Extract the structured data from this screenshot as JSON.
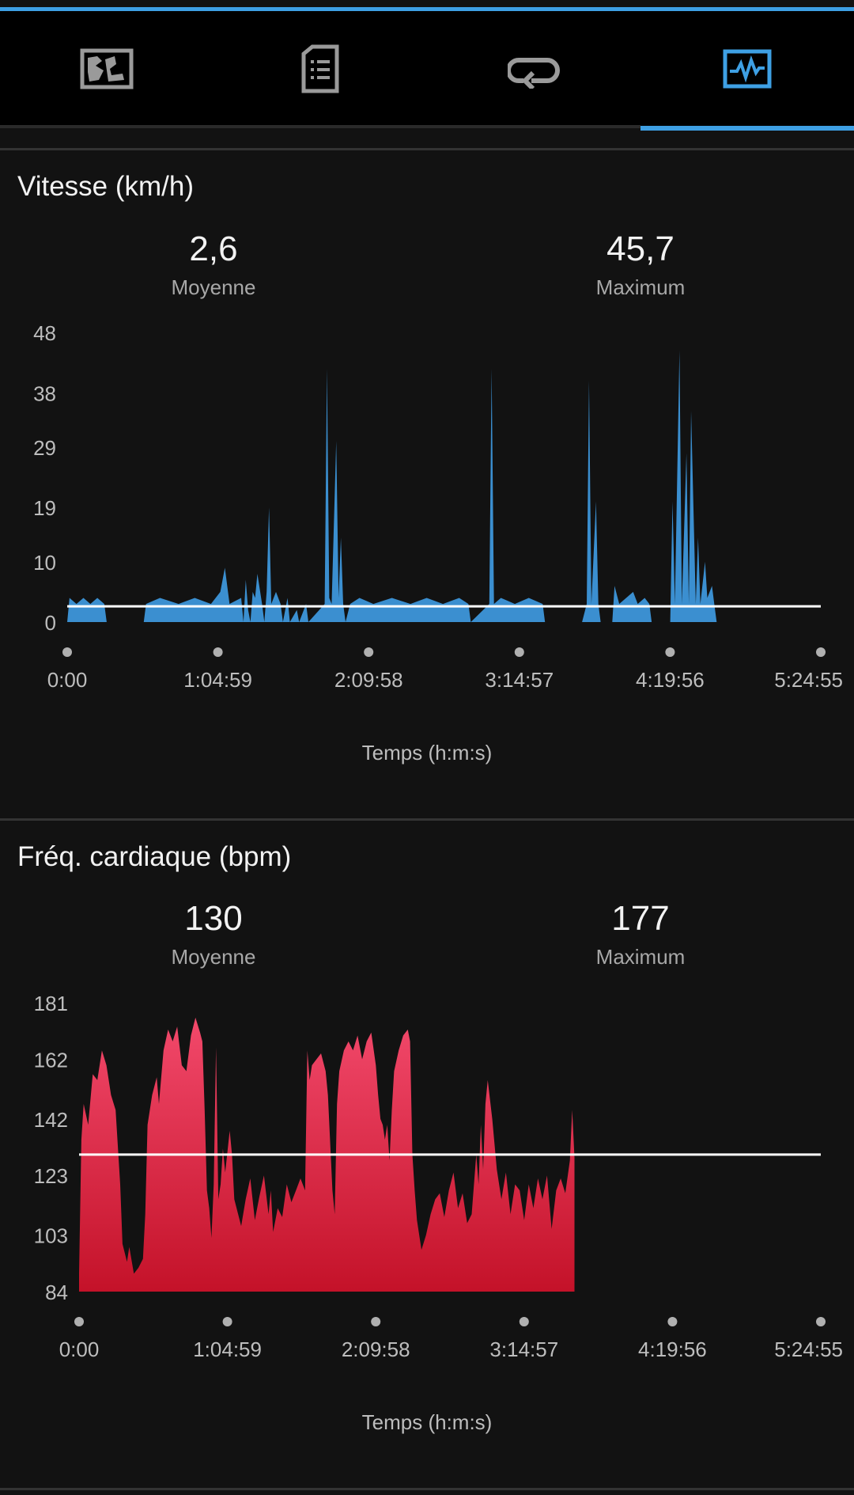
{
  "tabs": [
    {
      "name": "tab-map",
      "icon": "map-icon",
      "selected": false
    },
    {
      "name": "tab-details",
      "icon": "document-list-icon",
      "selected": false
    },
    {
      "name": "tab-laps",
      "icon": "laps-loop-icon",
      "selected": false
    },
    {
      "name": "tab-charts",
      "icon": "activity-chart-icon",
      "selected": true
    }
  ],
  "colors": {
    "accent": "#3ea0e4",
    "speed_fill": "#3b8fd0",
    "hr_top": "#f2496b",
    "hr_bottom": "#c41229",
    "avg_line": "#ffffff"
  },
  "speed": {
    "title": "Vitesse (km/h)",
    "avg_value": "2,6",
    "avg_label": "Moyenne",
    "max_value": "45,7",
    "max_label": "Maximum",
    "x_title": "Temps (h:m:s)"
  },
  "hr": {
    "title": "Fréq. cardiaque (bpm)",
    "avg_value": "130",
    "avg_label": "Moyenne",
    "max_value": "177",
    "max_label": "Maximum",
    "x_title": "Temps (h:m:s)"
  },
  "chart_data": [
    {
      "type": "area",
      "title": "Vitesse (km/h)",
      "xlabel": "Temps (h:m:s)",
      "ylabel": "",
      "y_ticks": [
        "0",
        "10",
        "19",
        "29",
        "38",
        "48"
      ],
      "x_ticks": [
        "0:00",
        "1:04:59",
        "2:09:58",
        "3:14:57",
        "4:19:56",
        "5:24:55"
      ],
      "xlim_seconds": [
        0,
        19495
      ],
      "ylim": [
        0,
        48
      ],
      "average_line": 2.6,
      "series": [
        {
          "points_minutes_value": [
            [
              0,
              0
            ],
            [
              1,
              4
            ],
            [
              4,
              3
            ],
            [
              7,
              4
            ],
            [
              10,
              3
            ],
            [
              13,
              4
            ],
            [
              16,
              3
            ],
            [
              17,
              0
            ],
            [
              33,
              0
            ],
            [
              34,
              3
            ],
            [
              40,
              4
            ],
            [
              48,
              3
            ],
            [
              55,
              4
            ],
            [
              62,
              3
            ],
            [
              66,
              5
            ],
            [
              68,
              9
            ],
            [
              70,
              3
            ],
            [
              75,
              4
            ],
            [
              76,
              0
            ],
            [
              77,
              7
            ],
            [
              78,
              2
            ],
            [
              79,
              0
            ],
            [
              80,
              5
            ],
            [
              81,
              4
            ],
            [
              82,
              8
            ],
            [
              84,
              3
            ],
            [
              85,
              0
            ],
            [
              86,
              5
            ],
            [
              87,
              19
            ],
            [
              88,
              3
            ],
            [
              90,
              5
            ],
            [
              92,
              3
            ],
            [
              93,
              0
            ],
            [
              95,
              4
            ],
            [
              96,
              0
            ],
            [
              99,
              2
            ],
            [
              100,
              0
            ],
            [
              103,
              3
            ],
            [
              104,
              0
            ],
            [
              111,
              3
            ],
            [
              112,
              42
            ],
            [
              113,
              4
            ],
            [
              114,
              3
            ],
            [
              116,
              30
            ],
            [
              117,
              4
            ],
            [
              118,
              14
            ],
            [
              119,
              3
            ],
            [
              120,
              0
            ],
            [
              122,
              3
            ],
            [
              126,
              4
            ],
            [
              132,
              3
            ],
            [
              140,
              4
            ],
            [
              148,
              3
            ],
            [
              155,
              4
            ],
            [
              162,
              3
            ],
            [
              169,
              4
            ],
            [
              173,
              3
            ],
            [
              174,
              0
            ],
            [
              182,
              3
            ],
            [
              183,
              42
            ],
            [
              184,
              3
            ],
            [
              187,
              4
            ],
            [
              193,
              3
            ],
            [
              199,
              4
            ],
            [
              205,
              3
            ],
            [
              206,
              0
            ],
            [
              222,
              0
            ],
            [
              224,
              3
            ],
            [
              225,
              40
            ],
            [
              226,
              3
            ],
            [
              228,
              20
            ],
            [
              229,
              3
            ],
            [
              230,
              0
            ],
            [
              235,
              0
            ],
            [
              236,
              6
            ],
            [
              238,
              3
            ],
            [
              241,
              4
            ],
            [
              244,
              5
            ],
            [
              246,
              3
            ],
            [
              249,
              4
            ],
            [
              251,
              3
            ],
            [
              252,
              0
            ],
            [
              260,
              0
            ],
            [
              261,
              20
            ],
            [
              262,
              3
            ],
            [
              264,
              45
            ],
            [
              265,
              3
            ],
            [
              267,
              28
            ],
            [
              268,
              3
            ],
            [
              269,
              35
            ],
            [
              271,
              3
            ],
            [
              272,
              14
            ],
            [
              273,
              3
            ],
            [
              275,
              10
            ],
            [
              276,
              4
            ],
            [
              278,
              6
            ],
            [
              279,
              3
            ],
            [
              280,
              0
            ]
          ]
        }
      ]
    },
    {
      "type": "area",
      "title": "Fréq. cardiaque (bpm)",
      "xlabel": "Temps (h:m:s)",
      "ylabel": "",
      "y_ticks": [
        "84",
        "103",
        "123",
        "142",
        "162",
        "181"
      ],
      "x_ticks": [
        "0:00",
        "1:04:59",
        "2:09:58",
        "3:14:57",
        "4:19:56",
        "5:24:55"
      ],
      "xlim_seconds": [
        0,
        19495
      ],
      "ylim": [
        84,
        181
      ],
      "average_line": 130,
      "series": [
        {
          "points_minutes_value": [
            [
              0,
              90
            ],
            [
              1,
              135
            ],
            [
              2,
              147
            ],
            [
              4,
              140
            ],
            [
              6,
              157
            ],
            [
              8,
              155
            ],
            [
              10,
              165
            ],
            [
              12,
              160
            ],
            [
              14,
              150
            ],
            [
              16,
              145
            ],
            [
              18,
              120
            ],
            [
              19,
              100
            ],
            [
              21,
              94
            ],
            [
              22,
              99
            ],
            [
              24,
              90
            ],
            [
              26,
              92
            ],
            [
              28,
              95
            ],
            [
              29,
              110
            ],
            [
              30,
              140
            ],
            [
              32,
              150
            ],
            [
              34,
              156
            ],
            [
              35,
              147
            ],
            [
              37,
              165
            ],
            [
              39,
              172
            ],
            [
              41,
              168
            ],
            [
              43,
              173
            ],
            [
              45,
              160
            ],
            [
              47,
              158
            ],
            [
              49,
              170
            ],
            [
              51,
              176
            ],
            [
              53,
              171
            ],
            [
              54,
              168
            ],
            [
              55,
              145
            ],
            [
              56,
              118
            ],
            [
              57,
              112
            ],
            [
              58,
              102
            ],
            [
              59,
              120
            ],
            [
              60,
              166
            ],
            [
              61,
              115
            ],
            [
              62,
              120
            ],
            [
              63,
              132
            ],
            [
              64,
              124
            ],
            [
              66,
              138
            ],
            [
              67,
              130
            ],
            [
              68,
              115
            ],
            [
              70,
              109
            ],
            [
              71,
              106
            ],
            [
              73,
              115
            ],
            [
              75,
              122
            ],
            [
              77,
              108
            ],
            [
              79,
              116
            ],
            [
              81,
              123
            ],
            [
              83,
              110
            ],
            [
              84,
              118
            ],
            [
              85,
              104
            ],
            [
              87,
              112
            ],
            [
              89,
              109
            ],
            [
              91,
              120
            ],
            [
              93,
              114
            ],
            [
              95,
              118
            ],
            [
              97,
              122
            ],
            [
              99,
              118
            ],
            [
              100,
              165
            ],
            [
              101,
              155
            ],
            [
              102,
              160
            ],
            [
              104,
              162
            ],
            [
              106,
              164
            ],
            [
              108,
              158
            ],
            [
              109,
              150
            ],
            [
              111,
              118
            ],
            [
              112,
              110
            ],
            [
              113,
              147
            ],
            [
              114,
              158
            ],
            [
              116,
              165
            ],
            [
              118,
              168
            ],
            [
              120,
              165
            ],
            [
              122,
              170
            ],
            [
              124,
              162
            ],
            [
              126,
              168
            ],
            [
              128,
              171
            ],
            [
              130,
              160
            ],
            [
              131,
              150
            ],
            [
              132,
              142
            ],
            [
              133,
              140
            ],
            [
              134,
              135
            ],
            [
              135,
              140
            ],
            [
              136,
              128
            ],
            [
              137,
              145
            ],
            [
              138,
              158
            ],
            [
              140,
              165
            ],
            [
              142,
              170
            ],
            [
              144,
              172
            ],
            [
              145,
              168
            ],
            [
              146,
              130
            ],
            [
              147,
              118
            ],
            [
              148,
              108
            ],
            [
              150,
              98
            ],
            [
              152,
              103
            ],
            [
              154,
              110
            ],
            [
              156,
              115
            ],
            [
              158,
              117
            ],
            [
              160,
              109
            ],
            [
              162,
              118
            ],
            [
              164,
              124
            ],
            [
              166,
              112
            ],
            [
              168,
              117
            ],
            [
              170,
              107
            ],
            [
              172,
              110
            ],
            [
              174,
              130
            ],
            [
              175,
              120
            ],
            [
              176,
              140
            ],
            [
              177,
              125
            ],
            [
              178,
              147
            ],
            [
              179,
              155
            ],
            [
              181,
              142
            ],
            [
              183,
              125
            ],
            [
              185,
              115
            ],
            [
              187,
              124
            ],
            [
              189,
              110
            ],
            [
              191,
              120
            ],
            [
              193,
              118
            ],
            [
              195,
              108
            ],
            [
              197,
              120
            ],
            [
              199,
              112
            ],
            [
              201,
              122
            ],
            [
              203,
              115
            ],
            [
              205,
              123
            ],
            [
              207,
              105
            ],
            [
              209,
              118
            ],
            [
              211,
              122
            ],
            [
              213,
              117
            ],
            [
              215,
              128
            ],
            [
              216,
              145
            ],
            [
              217,
              129
            ]
          ]
        }
      ]
    }
  ]
}
